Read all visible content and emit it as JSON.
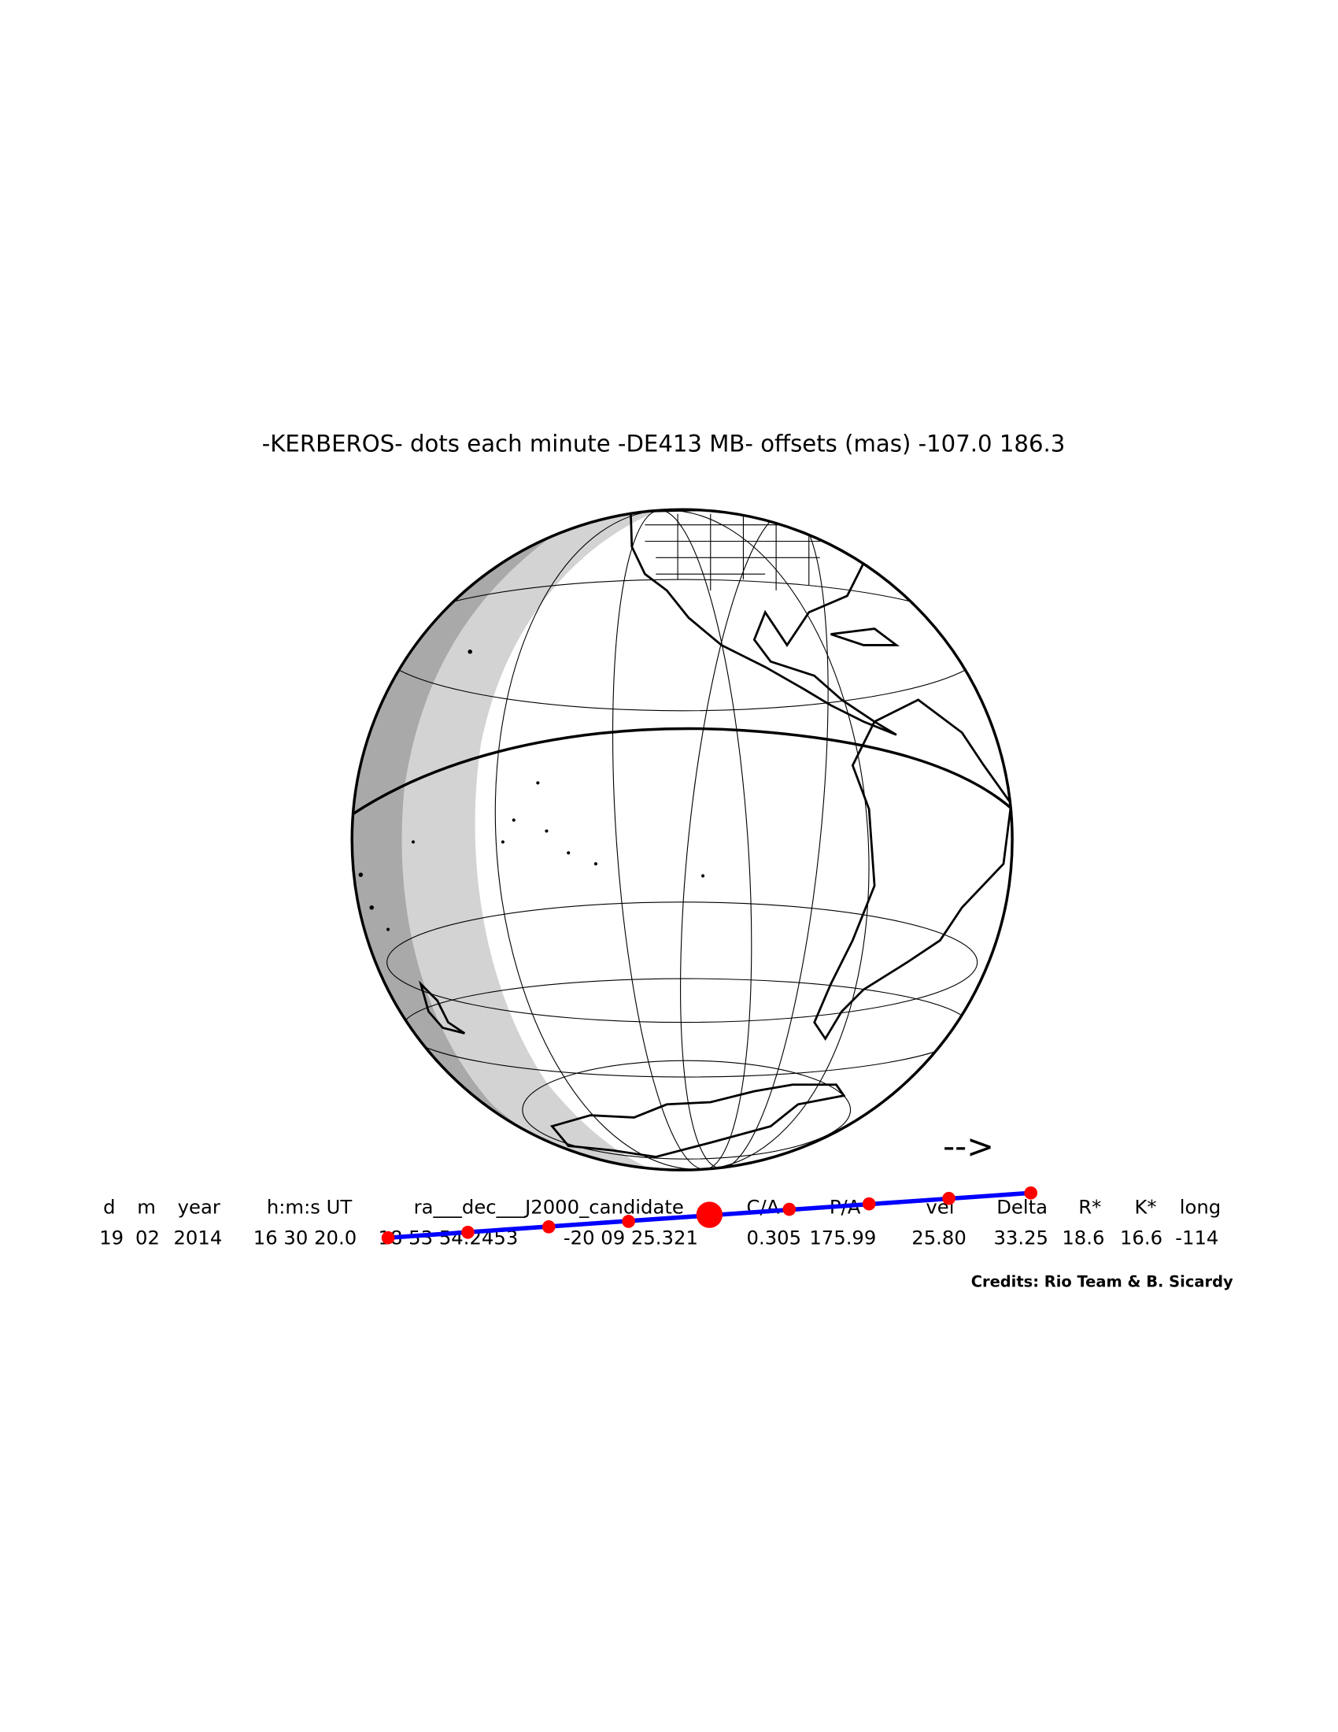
{
  "title": "-KERBEROS- dots each minute -DE413 MB- offsets (mas) -107.0  186.3",
  "arrow": "-->",
  "table": {
    "header": [
      "d",
      "m",
      "year",
      "h:m:s UT",
      "ra___dec___J2000_candidate",
      "C/A",
      "P/A",
      "vel",
      "Delta",
      "R*",
      "K*",
      "long"
    ],
    "values": [
      "19",
      "02",
      "2014",
      "16 30 20.0",
      "18 53 54.2453",
      "-20 09 25.321",
      "0.305",
      "175.99",
      "25.80",
      "33.25",
      "18.6",
      "16.6",
      "-114"
    ]
  },
  "credits": "Credits: Rio Team & B. Sicardy"
}
